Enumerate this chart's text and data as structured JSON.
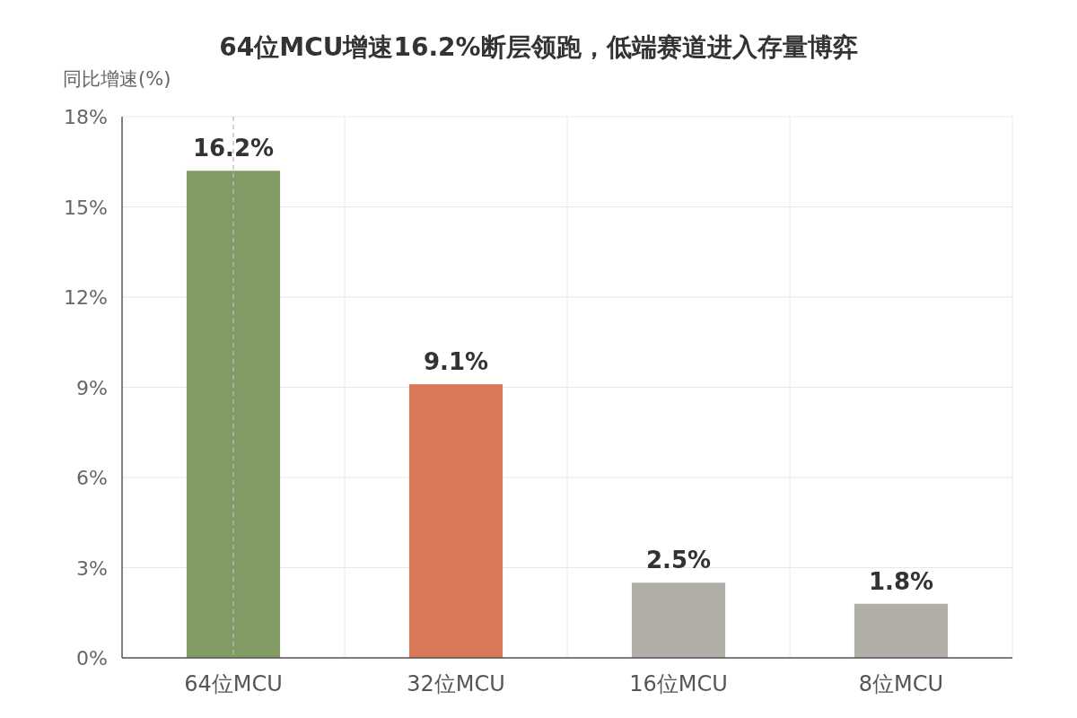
{
  "chart_data": {
    "type": "bar",
    "title": "64位MCU增速16.2%断层领跑，低端赛道进入存量博弈",
    "ylabel": "同比增速(%)",
    "categories": [
      "64位MCU",
      "32位MCU",
      "16位MCU",
      "8位MCU"
    ],
    "values": [
      16.2,
      9.1,
      2.5,
      1.8
    ],
    "colors": [
      "#829a64",
      "#da785a",
      "#b0aea6",
      "#b0aea6"
    ],
    "value_labels": [
      "16.2%",
      "9.1%",
      "2.5%",
      "1.8%"
    ],
    "ylim": [
      0,
      18
    ],
    "yticks": [
      {
        "value": 0,
        "label": "0%"
      },
      {
        "value": 3,
        "label": "3%"
      },
      {
        "value": 6,
        "label": "6%"
      },
      {
        "value": 9,
        "label": "9%"
      },
      {
        "value": 12,
        "label": "12%"
      },
      {
        "value": 15,
        "label": "15%"
      },
      {
        "value": 18,
        "label": "18%"
      }
    ],
    "grid": true,
    "ref_lines": [
      {
        "axis": "x",
        "value": "64位MCU",
        "color": "#bbbbbb",
        "line_style": "dashed"
      }
    ]
  }
}
